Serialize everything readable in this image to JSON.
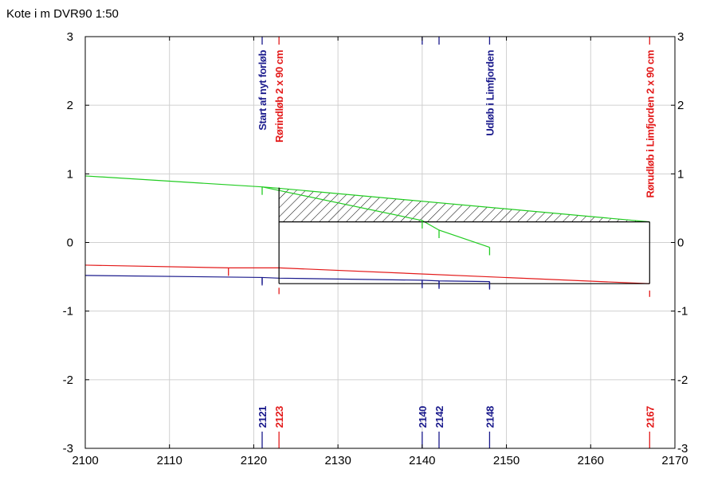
{
  "title": "Kote i m DVR90 1:50",
  "chart_data": {
    "type": "line",
    "xlim": [
      2100,
      2170
    ],
    "ylim": [
      -3,
      3
    ],
    "x_ticks": [
      2100,
      2110,
      2120,
      2130,
      2140,
      2150,
      2160,
      2170
    ],
    "y_ticks": [
      -3,
      -2,
      -1,
      0,
      1,
      2,
      3
    ],
    "grid": true,
    "colors": {
      "green": "#22cc22",
      "red": "#e31a1a",
      "blue": "#1a1a8c",
      "black": "#000000",
      "grid": "#d0d0d0"
    },
    "series": [
      {
        "color": "green",
        "points": [
          [
            2100,
            0.97
          ],
          [
            2121,
            0.81
          ],
          [
            2123,
            0.79
          ],
          [
            2167,
            0.3
          ]
        ]
      },
      {
        "color": "green",
        "points": [
          [
            2121,
            0.81
          ],
          [
            2140,
            0.32
          ],
          [
            2142,
            0.18
          ],
          [
            2148,
            -0.07
          ]
        ]
      },
      {
        "color": "red",
        "points": [
          [
            2100,
            -0.33
          ],
          [
            2117,
            -0.37
          ],
          [
            2123,
            -0.37
          ],
          [
            2167,
            -0.6
          ]
        ]
      },
      {
        "color": "blue",
        "points": [
          [
            2100,
            -0.48
          ],
          [
            2121,
            -0.51
          ],
          [
            2123,
            -0.52
          ],
          [
            2140,
            -0.55
          ],
          [
            2142,
            -0.56
          ],
          [
            2148,
            -0.57
          ]
        ]
      },
      {
        "color": "black",
        "points": [
          [
            2123,
            0.3
          ],
          [
            2167,
            0.3
          ]
        ]
      },
      {
        "color": "black",
        "points": [
          [
            2123,
            -0.6
          ],
          [
            2167,
            -0.6
          ]
        ]
      },
      {
        "color": "black",
        "points": [
          [
            2123,
            0.8
          ],
          [
            2123,
            -0.6
          ]
        ]
      },
      {
        "color": "black",
        "points": [
          [
            2167,
            0.3
          ],
          [
            2167,
            -0.6
          ]
        ]
      }
    ],
    "hatched_area": {
      "x": [
        2123,
        2167
      ],
      "top": [
        0.79,
        0.3
      ],
      "bottom": [
        0.3,
        0.3
      ]
    },
    "station_ticks": [
      {
        "x": 2117,
        "y": -0.37,
        "color": "red"
      },
      {
        "x": 2121,
        "y": 0.81,
        "color": "green"
      },
      {
        "x": 2121,
        "y": -0.51,
        "color": "blue"
      },
      {
        "x": 2140,
        "y": 0.32,
        "color": "green"
      },
      {
        "x": 2140,
        "y": -0.55,
        "color": "blue"
      },
      {
        "x": 2142,
        "y": 0.18,
        "color": "green"
      },
      {
        "x": 2142,
        "y": -0.56,
        "color": "blue"
      },
      {
        "x": 2148,
        "y": -0.07,
        "color": "green"
      },
      {
        "x": 2148,
        "y": -0.57,
        "color": "blue"
      }
    ],
    "markers": [
      {
        "x": 2121,
        "color": "blue",
        "label": "Start af nyt forløb",
        "station": "2121",
        "bottom": -0.51
      },
      {
        "x": 2123,
        "color": "red",
        "label": "Rørindløb 2 x 90 cm",
        "station": "2123",
        "bottom": -0.66
      },
      {
        "x": 2140,
        "color": "blue",
        "label": "",
        "station": "2140",
        "bottom": -0.55
      },
      {
        "x": 2142,
        "color": "blue",
        "label": "",
        "station": "2142",
        "bottom": -0.56
      },
      {
        "x": 2148,
        "color": "blue",
        "label": "Udløb i Limfjorden",
        "station": "2148",
        "bottom": -0.57
      },
      {
        "x": 2167,
        "color": "red",
        "label": "Rørudløb i Limfjorden 2 x 90 cm",
        "station": "2167",
        "bottom": -0.7
      }
    ]
  }
}
